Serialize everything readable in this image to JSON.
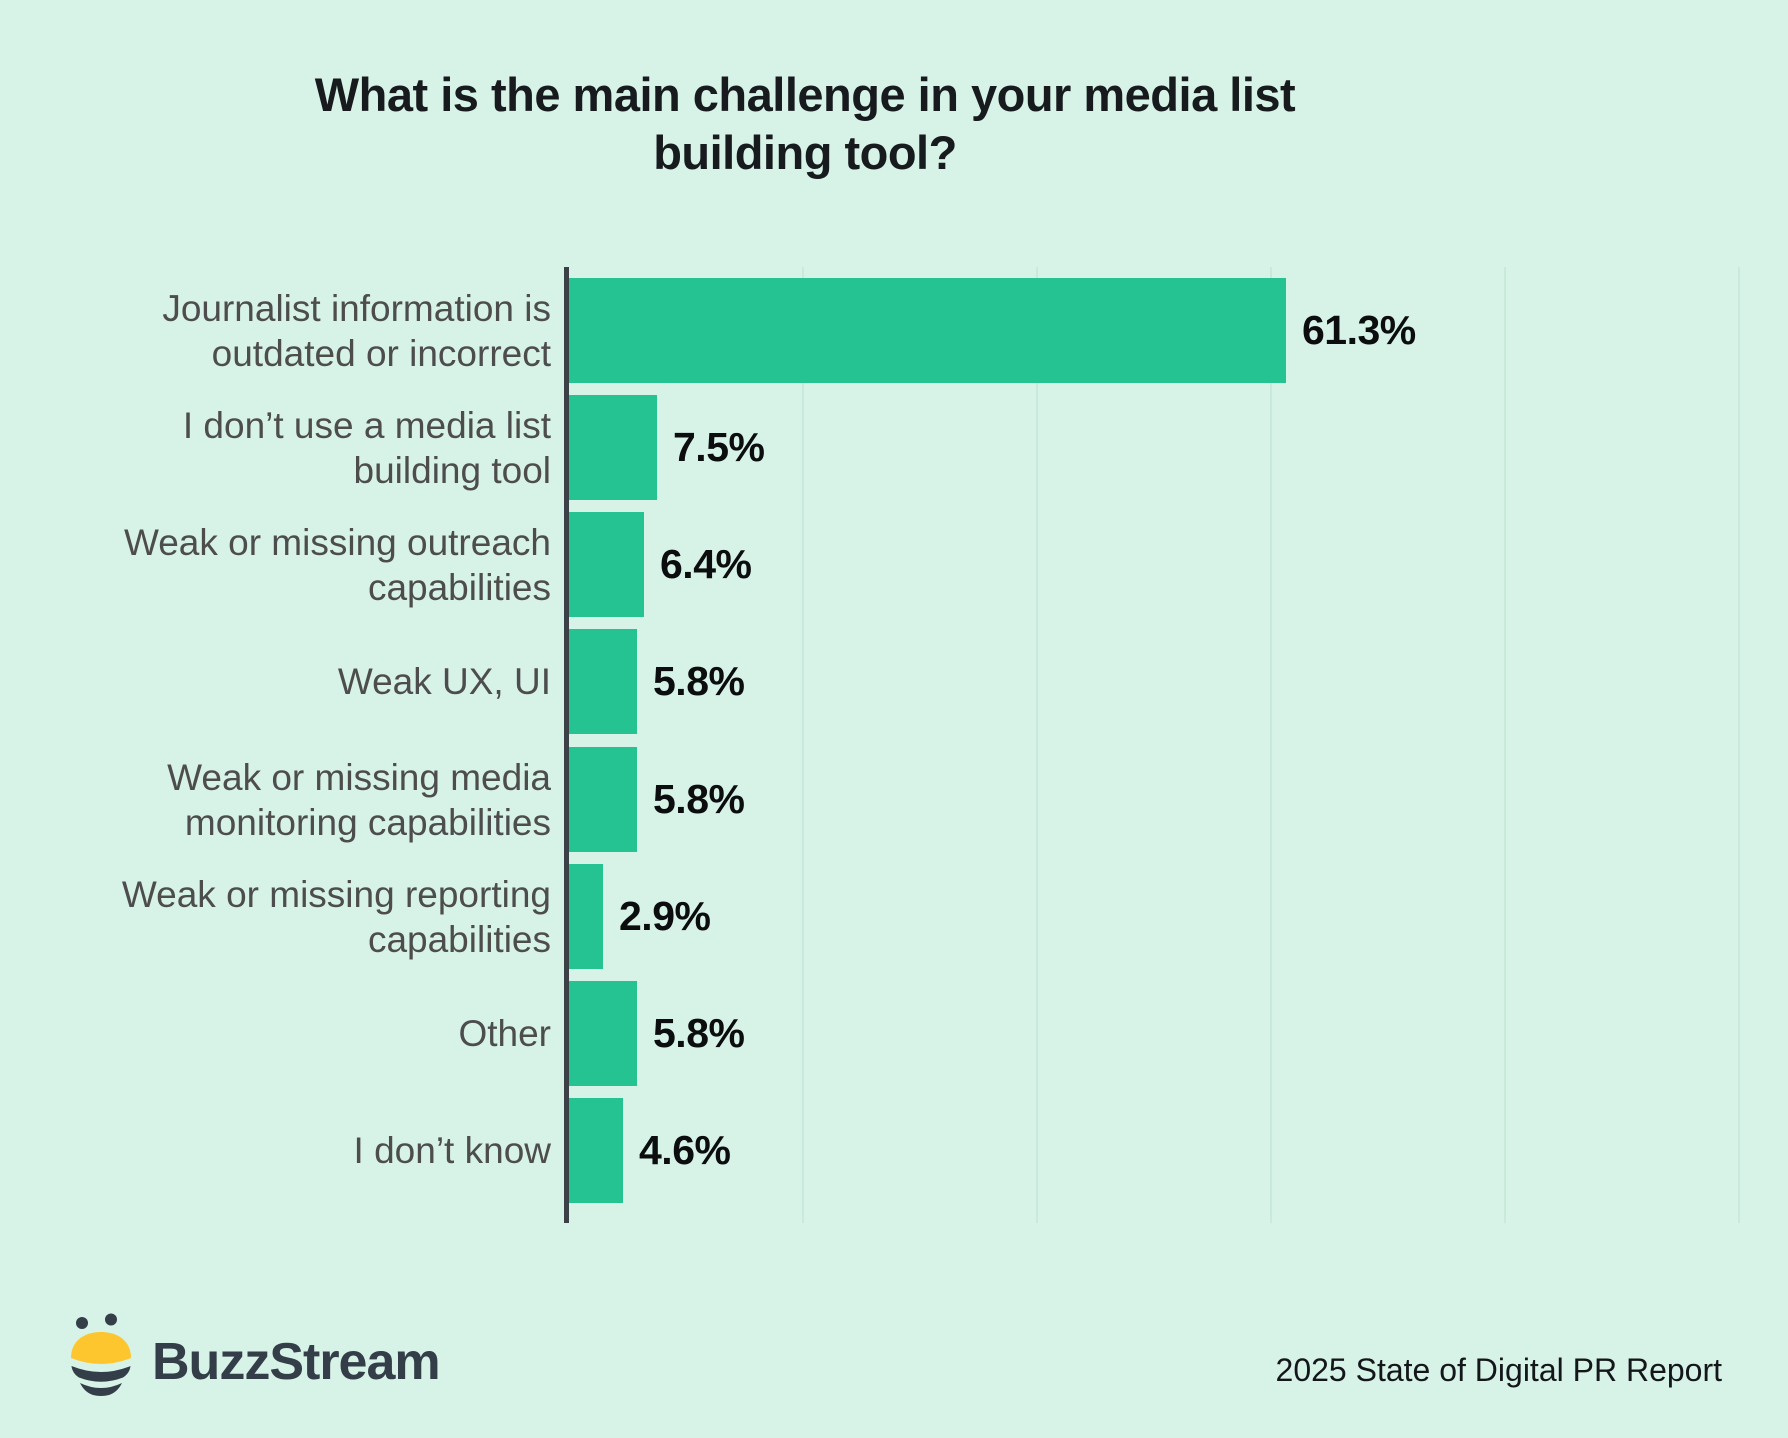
{
  "chart_data": {
    "type": "bar",
    "orientation": "horizontal",
    "title": "What is the main challenge in your media list building tool?",
    "title_lines": [
      "What is the main challenge in your media list",
      "building tool?"
    ],
    "categories": [
      "Journalist information is outdated or incorrect",
      "I don’t use a media list building tool",
      "Weak or missing outreach capabilities",
      "Weak UX, UI",
      "Weak or missing media monitoring capabilities",
      "Weak or missing reporting capabilities",
      "Other",
      "I don’t know"
    ],
    "label_lines": [
      [
        "Journalist information is",
        "outdated or incorrect"
      ],
      [
        "I don’t use a media list",
        "building tool"
      ],
      [
        "Weak or missing outreach",
        "capabilities"
      ],
      [
        "Weak UX, UI"
      ],
      [
        "Weak or missing media",
        "monitoring capabilities"
      ],
      [
        "Weak or missing reporting",
        "capabilities"
      ],
      [
        "Other"
      ],
      [
        "I don’t know"
      ]
    ],
    "values": [
      61.3,
      7.5,
      6.4,
      5.8,
      5.8,
      2.9,
      5.8,
      4.6
    ],
    "value_labels": [
      "61.3%",
      "7.5%",
      "6.4%",
      "5.8%",
      "5.8%",
      "2.9%",
      "5.8%",
      "4.6%"
    ],
    "xlabel": "",
    "ylabel": "",
    "xlim": [
      0,
      100
    ],
    "gridlines_percent": [
      20,
      40,
      60,
      80,
      100
    ],
    "grid": true,
    "legend": false,
    "colors": {
      "bar": "#25c292",
      "background": "#d7f2e7",
      "axis": "#3a4045",
      "gridline": "#c9e9da",
      "category_label": "#4d4d4d",
      "value_label": "#0c0d0e",
      "title": "#171b1e"
    }
  },
  "footer": {
    "brand": "BuzzStream",
    "source": "2025 State of Digital PR Report",
    "logo_colors": {
      "yellow": "#fec62e",
      "dark": "#333e48"
    }
  }
}
